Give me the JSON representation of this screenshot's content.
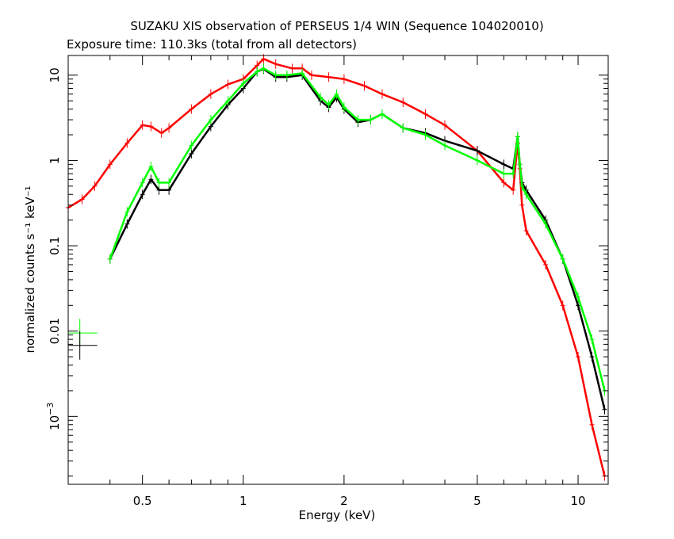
{
  "chart_data": {
    "type": "line",
    "title": "SUZAKU XIS observation of PERSEUS 1/4 WIN (Sequence 104020010)",
    "subtitle": "Exposure time: 110.3ks (total from all detectors)",
    "xlabel": "Energy (keV)",
    "ylabel": "normalized counts s⁻¹ keV⁻¹",
    "xscale": "log",
    "yscale": "log",
    "xlim": [
      0.3,
      12.3
    ],
    "ylim": [
      0.00016,
      17
    ],
    "x_ticks": [
      {
        "value": 0.5,
        "label": "0.5"
      },
      {
        "value": 1,
        "label": "1"
      },
      {
        "value": 2,
        "label": "2"
      },
      {
        "value": 5,
        "label": "5"
      },
      {
        "value": 10,
        "label": "10"
      }
    ],
    "y_ticks": [
      {
        "value": 10,
        "label": "10"
      },
      {
        "value": 1,
        "label": "1"
      },
      {
        "value": 0.1,
        "label": "0.1"
      },
      {
        "value": 0.01,
        "label": "0.01"
      },
      {
        "value": 0.001,
        "label": "10",
        "exp": "−3"
      }
    ],
    "grid": false,
    "legend": "none",
    "series": [
      {
        "color": "#ff0000",
        "x": [
          0.3,
          0.33,
          0.36,
          0.4,
          0.45,
          0.5,
          0.53,
          0.57,
          0.6,
          0.7,
          0.8,
          0.9,
          1.0,
          1.1,
          1.15,
          1.25,
          1.4,
          1.5,
          1.6,
          1.8,
          2.0,
          2.3,
          2.6,
          3.0,
          3.5,
          4.0,
          5.0,
          6.0,
          6.4,
          6.6,
          6.7,
          6.8,
          7.0,
          8.0,
          9.0,
          10.0,
          11.0,
          12.0
        ],
        "y": [
          0.28,
          0.35,
          0.5,
          0.9,
          1.6,
          2.6,
          2.5,
          2.1,
          2.4,
          4.0,
          6.0,
          7.8,
          9.0,
          13.0,
          15.5,
          13.5,
          12.0,
          12.0,
          10.0,
          9.5,
          9.0,
          7.5,
          6.0,
          4.8,
          3.5,
          2.6,
          1.3,
          0.55,
          0.45,
          1.6,
          0.8,
          0.3,
          0.15,
          0.06,
          0.02,
          0.005,
          0.0008,
          0.0002
        ]
      },
      {
        "color": "#000000",
        "x": [
          0.4,
          0.45,
          0.5,
          0.53,
          0.56,
          0.6,
          0.7,
          0.8,
          0.9,
          1.0,
          1.1,
          1.15,
          1.25,
          1.35,
          1.5,
          1.7,
          1.8,
          1.9,
          2.0,
          2.2,
          2.4,
          2.6,
          3.0,
          3.5,
          4.0,
          5.0,
          6.0,
          6.4,
          6.6,
          6.7,
          6.8,
          7.0,
          8.0,
          9.0,
          10.0,
          11.0,
          12.0
        ],
        "y": [
          0.07,
          0.18,
          0.4,
          0.6,
          0.45,
          0.45,
          1.2,
          2.5,
          4.5,
          7.0,
          11.0,
          11.8,
          9.5,
          9.5,
          10.0,
          5.0,
          4.2,
          5.5,
          4.0,
          2.8,
          3.0,
          3.5,
          2.4,
          2.1,
          1.7,
          1.3,
          0.9,
          0.8,
          1.9,
          0.9,
          0.55,
          0.45,
          0.2,
          0.07,
          0.02,
          0.005,
          0.0012
        ]
      },
      {
        "color": "#00ff00",
        "x": [
          0.4,
          0.45,
          0.5,
          0.53,
          0.56,
          0.6,
          0.7,
          0.8,
          0.9,
          1.0,
          1.1,
          1.15,
          1.25,
          1.35,
          1.5,
          1.7,
          1.8,
          1.9,
          2.0,
          2.2,
          2.4,
          2.6,
          3.0,
          3.5,
          4.0,
          5.0,
          6.0,
          6.4,
          6.6,
          6.7,
          6.8,
          7.0,
          8.0,
          9.0,
          10.0,
          11.0,
          12.0
        ],
        "y": [
          0.07,
          0.25,
          0.55,
          0.85,
          0.55,
          0.55,
          1.5,
          3.0,
          5.0,
          8.0,
          11.0,
          12.0,
          10.0,
          10.0,
          10.5,
          5.5,
          4.5,
          6.0,
          4.2,
          3.0,
          3.0,
          3.5,
          2.4,
          2.0,
          1.5,
          1.0,
          0.7,
          0.7,
          1.9,
          0.9,
          0.5,
          0.4,
          0.18,
          0.07,
          0.025,
          0.008,
          0.002
        ]
      }
    ],
    "key_marks": [
      {
        "color": "#00ff00",
        "x": 0.325,
        "y": 0.0095
      },
      {
        "color": "#000000",
        "x": 0.325,
        "y": 0.0068
      }
    ]
  }
}
